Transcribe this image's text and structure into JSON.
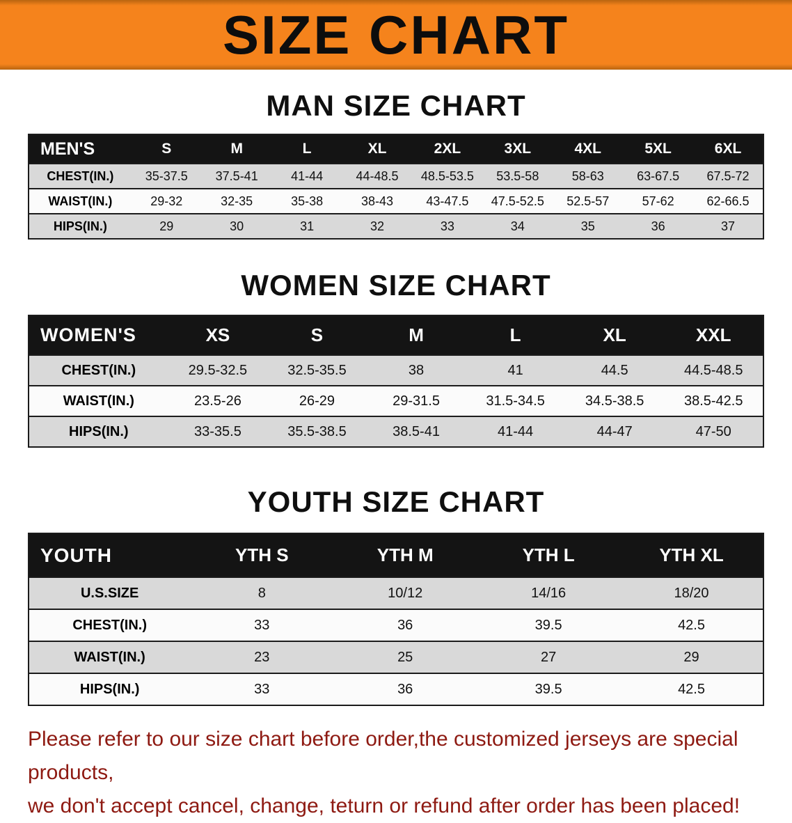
{
  "banner": {
    "title": "SIZE CHART",
    "bg_color": "#f5831c"
  },
  "sections": {
    "men": {
      "heading": "MAN SIZE CHART",
      "table": {
        "label": "MEN'S",
        "columns": [
          "S",
          "M",
          "L",
          "XL",
          "2XL",
          "3XL",
          "4XL",
          "5XL",
          "6XL"
        ],
        "rows": [
          {
            "label": "CHEST(IN.)",
            "values": [
              "35-37.5",
              "37.5-41",
              "41-44",
              "44-48.5",
              "48.5-53.5",
              "53.5-58",
              "58-63",
              "63-67.5",
              "67.5-72"
            ]
          },
          {
            "label": "WAIST(IN.)",
            "values": [
              "29-32",
              "32-35",
              "35-38",
              "38-43",
              "43-47.5",
              "47.5-52.5",
              "52.5-57",
              "57-62",
              "62-66.5"
            ]
          },
          {
            "label": "HIPS(IN.)",
            "values": [
              "29",
              "30",
              "31",
              "32",
              "33",
              "34",
              "35",
              "36",
              "37"
            ]
          }
        ]
      }
    },
    "women": {
      "heading": "WOMEN SIZE CHART",
      "table": {
        "label": "WOMEN'S",
        "columns": [
          "XS",
          "S",
          "M",
          "L",
          "XL",
          "XXL"
        ],
        "rows": [
          {
            "label": "CHEST(IN.)",
            "values": [
              "29.5-32.5",
              "32.5-35.5",
              "38",
              "41",
              "44.5",
              "44.5-48.5"
            ]
          },
          {
            "label": "WAIST(IN.)",
            "values": [
              "23.5-26",
              "26-29",
              "29-31.5",
              "31.5-34.5",
              "34.5-38.5",
              "38.5-42.5"
            ]
          },
          {
            "label": "HIPS(IN.)",
            "values": [
              "33-35.5",
              "35.5-38.5",
              "38.5-41",
              "41-44",
              "44-47",
              "47-50"
            ]
          }
        ]
      }
    },
    "youth": {
      "heading": "YOUTH SIZE CHART",
      "table": {
        "label": "YOUTH",
        "columns": [
          "YTH S",
          "YTH M",
          "YTH L",
          "YTH XL"
        ],
        "rows": [
          {
            "label": "U.S.SIZE",
            "values": [
              "8",
              "10/12",
              "14/16",
              "18/20"
            ]
          },
          {
            "label": "CHEST(IN.)",
            "values": [
              "33",
              "36",
              "39.5",
              "42.5"
            ]
          },
          {
            "label": "WAIST(IN.)",
            "values": [
              "23",
              "25",
              "27",
              "29"
            ]
          },
          {
            "label": "HIPS(IN.)",
            "values": [
              "33",
              "36",
              "39.5",
              "42.5"
            ]
          }
        ]
      }
    }
  },
  "footer": {
    "line1": "Please refer to our size chart before order,the customized jerseys are special products,",
    "line2": "we don't accept cancel, change, teturn or refund after order has been placed!",
    "text_color": "#8e1a12"
  }
}
